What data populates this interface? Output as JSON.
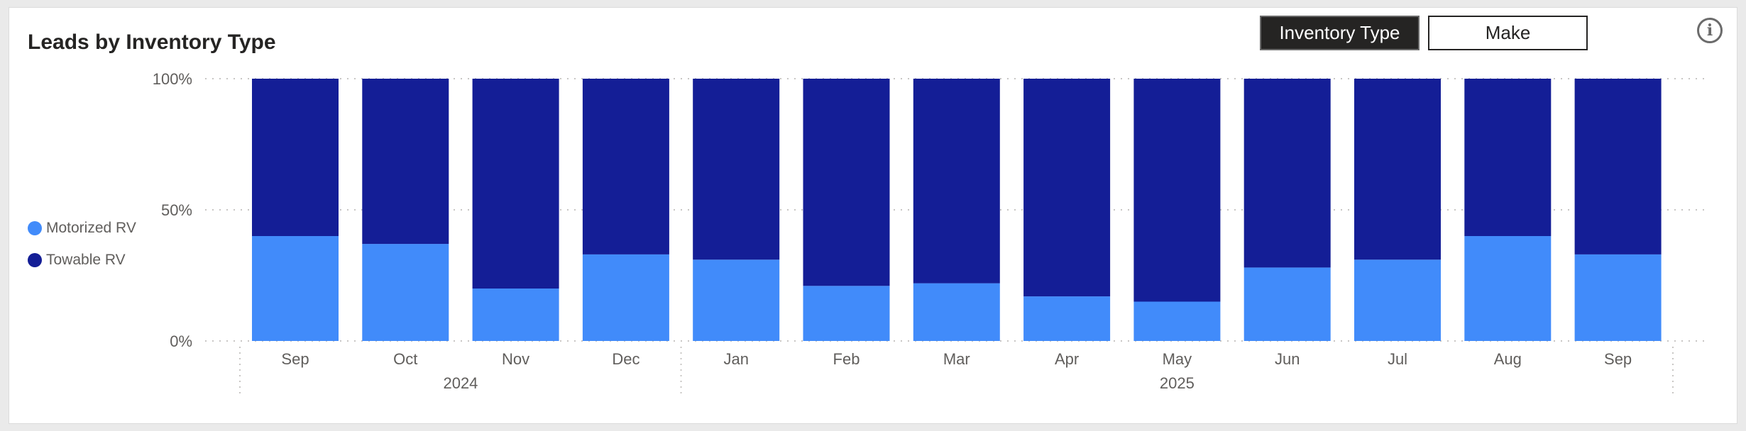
{
  "card": {
    "title": "Leads by Inventory Type",
    "toggles": [
      "Inventory Type",
      "Make"
    ],
    "active_toggle": "Inventory Type",
    "info_icon": "info-circle-icon"
  },
  "colors": {
    "motorized": "#418bfa",
    "towable": "#141e96",
    "toggle_active_bg": "#252423"
  },
  "chart_data": {
    "type": "bar",
    "stacked": "percent",
    "title": "",
    "xlabel": "",
    "ylabel": "",
    "ylim": [
      0,
      100
    ],
    "yticks": [
      "0%",
      "50%",
      "100%"
    ],
    "grid": true,
    "legend_position": "left",
    "categories": [
      "Sep",
      "Oct",
      "Nov",
      "Dec",
      "Jan",
      "Feb",
      "Mar",
      "Apr",
      "May",
      "Jun",
      "Jul",
      "Aug",
      "Sep"
    ],
    "year_groups": [
      {
        "label": "2024",
        "categories": [
          "Sep",
          "Oct",
          "Nov",
          "Dec"
        ]
      },
      {
        "label": "2025",
        "categories": [
          "Jan",
          "Feb",
          "Mar",
          "Apr",
          "May",
          "Jun",
          "Jul",
          "Aug",
          "Sep"
        ]
      }
    ],
    "series": [
      {
        "name": "Motorized RV",
        "values": [
          40,
          37,
          20,
          33,
          31,
          21,
          22,
          17,
          15,
          28,
          31,
          40,
          33
        ]
      },
      {
        "name": "Towable RV",
        "values": [
          60,
          63,
          80,
          67,
          69,
          79,
          78,
          83,
          85,
          72,
          69,
          60,
          67
        ]
      }
    ]
  }
}
